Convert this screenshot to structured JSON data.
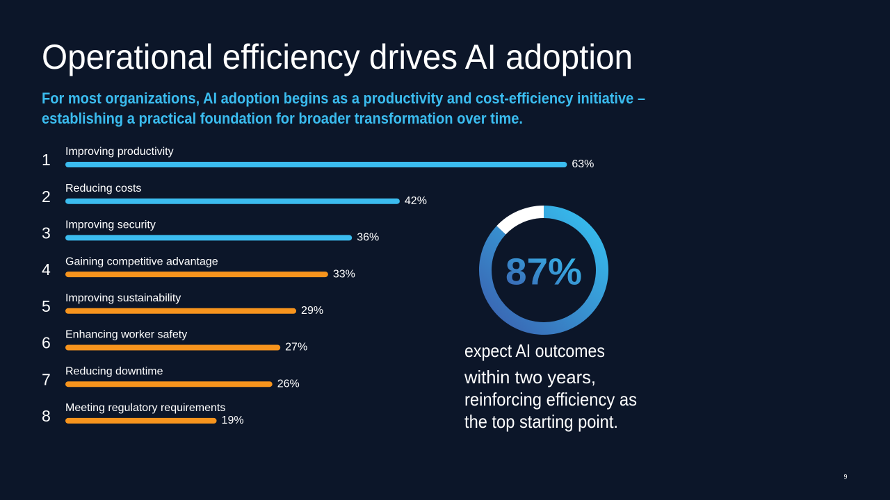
{
  "title": "Operational efficiency drives AI adoption",
  "subtitle_lines": [
    "For most organizations, AI adoption begins as a productivity and cost-efficiency initiative –",
    "establishing a practical foundation for broader transformation over time."
  ],
  "page_number": "9",
  "chart_data": [
    {
      "type": "bar",
      "ranks": [
        1,
        2,
        3,
        4,
        5,
        6,
        7,
        8
      ],
      "categories": [
        "Improving productivity",
        "Reducing costs",
        "Improving security",
        "Gaining competitive advantage",
        "Improving sustainability",
        "Enhancing worker safety",
        "Reducing downtime",
        "Meeting regulatory requirements"
      ],
      "values": [
        63,
        42,
        36,
        33,
        29,
        27,
        26,
        19
      ],
      "value_labels": [
        "63%",
        "42%",
        "36%",
        "33%",
        "29%",
        "27%",
        "26%",
        "19%"
      ],
      "colors": [
        "#3bbcef",
        "#3bbcef",
        "#3bbcef",
        "#f7941d",
        "#f7941d",
        "#f7941d",
        "#f7941d",
        "#f7941d"
      ]
    },
    {
      "type": "donut",
      "value": 87,
      "value_label": "87%",
      "caption_lines": [
        "expect AI outcomes",
        "within two years,",
        "reinforcing efficiency as",
        "the top starting point."
      ]
    }
  ]
}
